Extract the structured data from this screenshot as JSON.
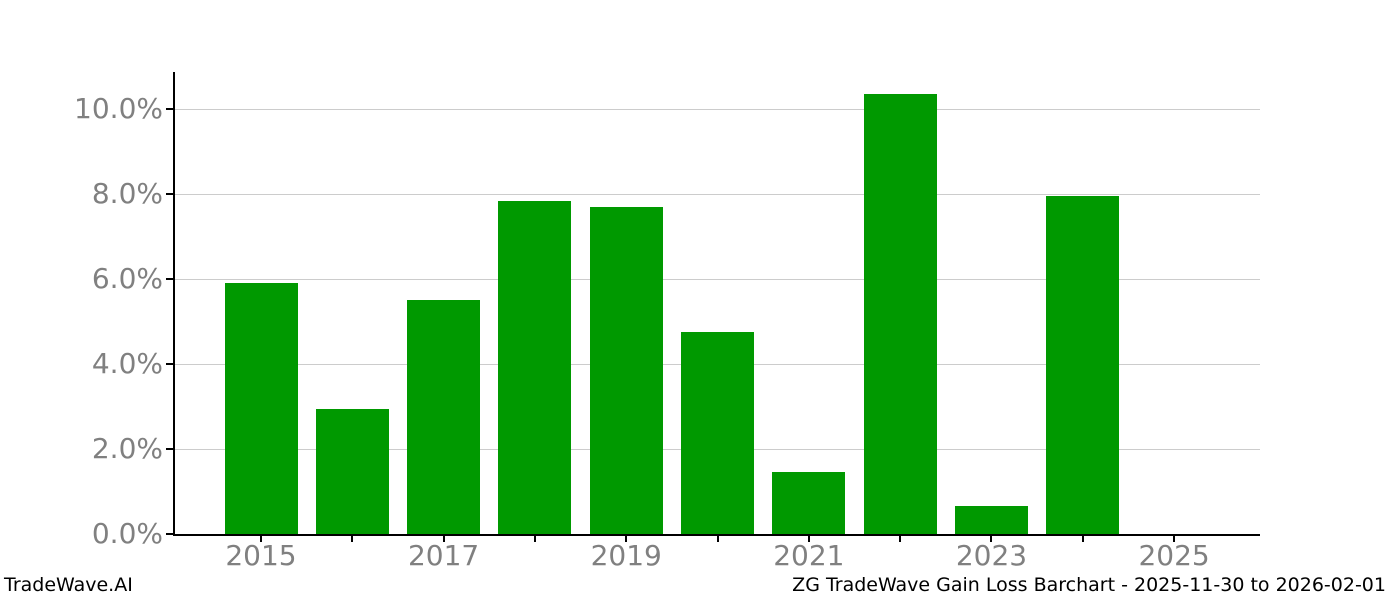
{
  "footer": {
    "brand": "TradeWave.AI",
    "title": "ZG TradeWave Gain Loss Barchart - 2025-11-30 to 2026-02-01"
  },
  "colors": {
    "bar_green": "#009900",
    "grid": "#cccccc",
    "axis": "#000000",
    "tick_label": "#808080",
    "background": "#ffffff",
    "footer_text": "#000000"
  },
  "chart_data": {
    "type": "bar",
    "title": "",
    "xlabel": "",
    "ylabel": "",
    "categories": [
      "2015",
      "2016",
      "2017",
      "2018",
      "2019",
      "2020",
      "2021",
      "2022",
      "2023",
      "2024",
      "2025"
    ],
    "values": [
      5.9,
      2.95,
      5.52,
      7.85,
      7.71,
      4.76,
      1.46,
      10.36,
      0.66,
      7.97,
      0.0
    ],
    "unit": "%",
    "ylim": [
      0,
      10.88
    ],
    "yticks": [
      {
        "value": 0,
        "label": "0.0%"
      },
      {
        "value": 2,
        "label": "2.0%"
      },
      {
        "value": 4,
        "label": "4.0%"
      },
      {
        "value": 6,
        "label": "6.0%"
      },
      {
        "value": 8,
        "label": "8.0%"
      },
      {
        "value": 10,
        "label": "10.0%"
      }
    ],
    "xticks_labeled": [
      "2015",
      "2017",
      "2019",
      "2021",
      "2023",
      "2025"
    ],
    "grid": "horizontal",
    "legend": "none",
    "bar_color": "#009900"
  }
}
